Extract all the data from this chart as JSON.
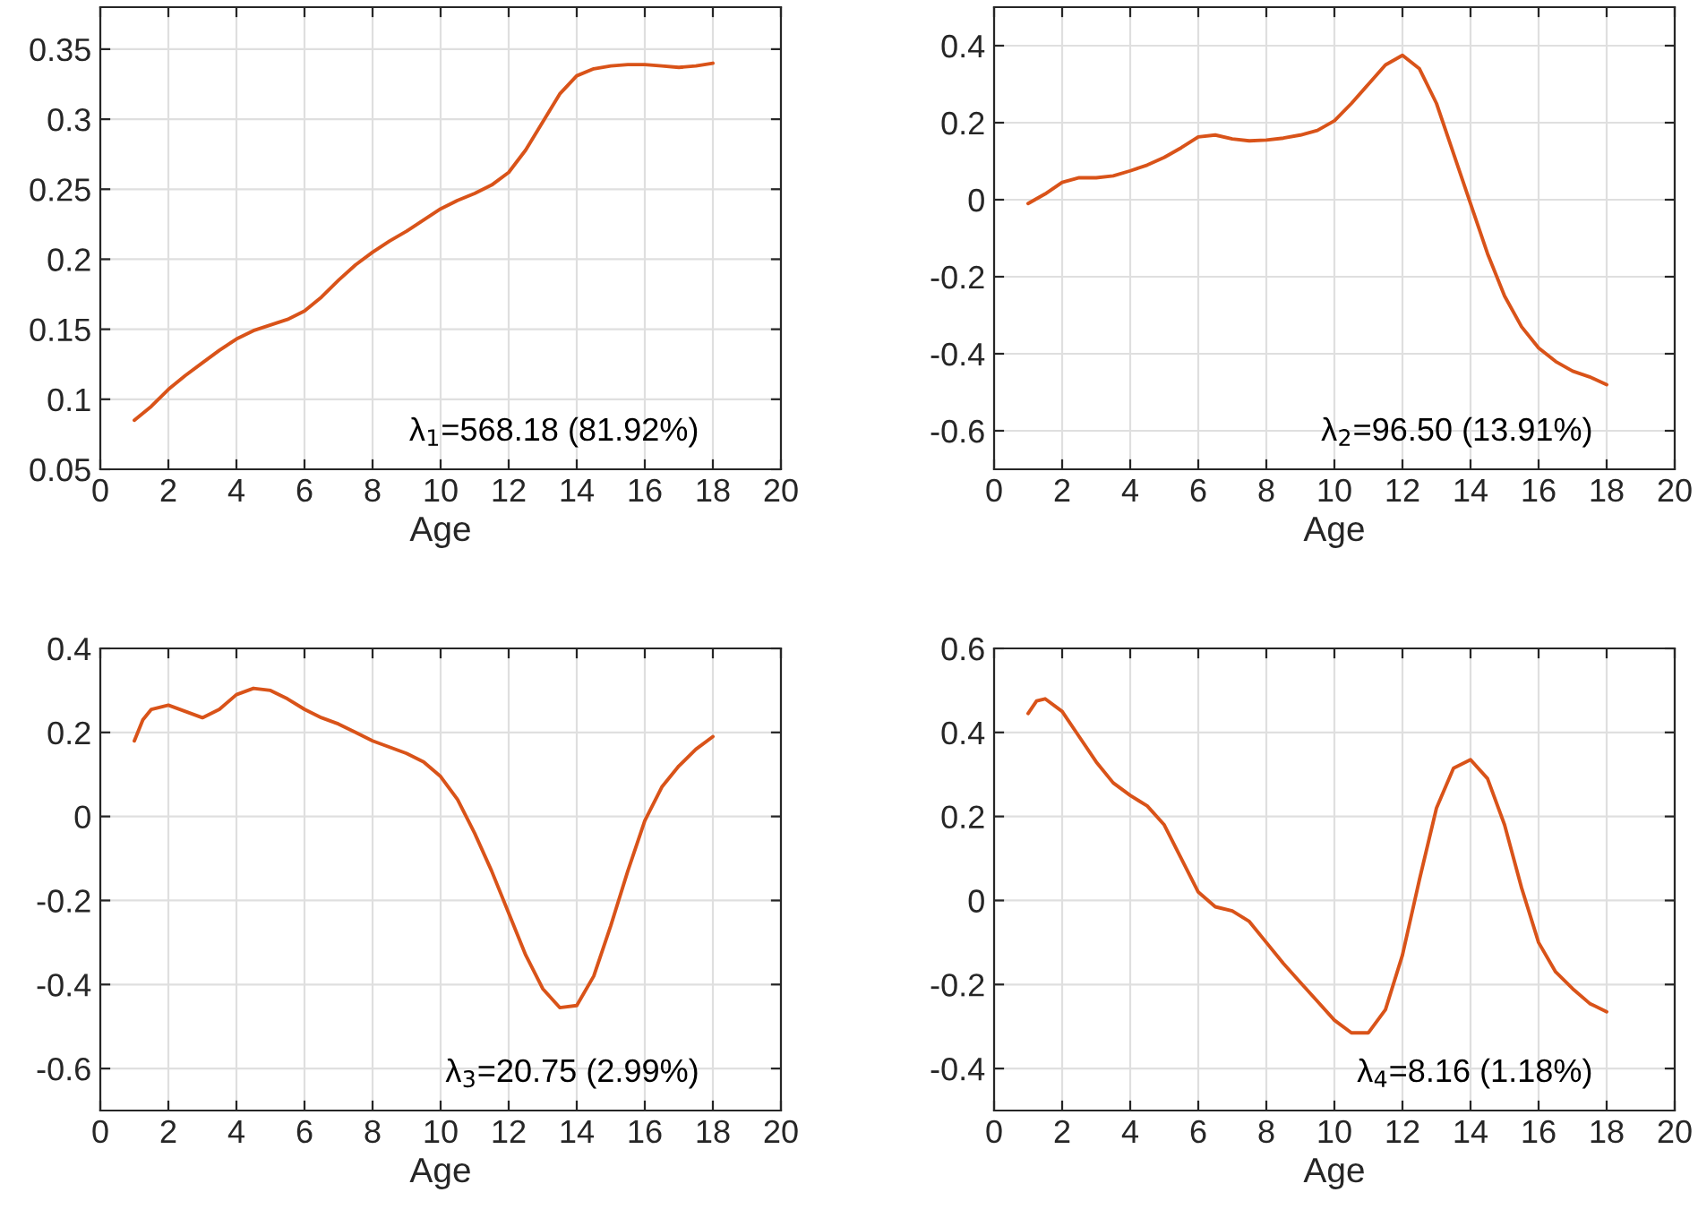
{
  "chart_data": [
    {
      "type": "line",
      "xlabel": "Age",
      "x": [
        1,
        1.5,
        2,
        2.5,
        3,
        3.5,
        4,
        4.5,
        5,
        5.5,
        6,
        6.5,
        7,
        7.5,
        8,
        8.5,
        9,
        9.5,
        10,
        10.5,
        11,
        11.5,
        12,
        12.5,
        13,
        13.5,
        14,
        14.5,
        15,
        15.5,
        16,
        16.5,
        17,
        17.5,
        18
      ],
      "series": [
        {
          "color": "#d95319",
          "values": [
            0.085,
            0.095,
            0.107,
            0.117,
            0.126,
            0.135,
            0.143,
            0.149,
            0.153,
            0.157,
            0.163,
            0.173,
            0.185,
            0.196,
            0.205,
            0.213,
            0.22,
            0.228,
            0.236,
            0.242,
            0.247,
            0.253,
            0.262,
            0.278,
            0.298,
            0.318,
            0.331,
            0.336,
            0.338,
            0.339,
            0.339,
            0.338,
            0.337,
            0.338,
            0.34
          ]
        }
      ],
      "xlim": [
        0,
        20
      ],
      "xticks": [
        0,
        2,
        4,
        6,
        8,
        10,
        12,
        14,
        16,
        18,
        20
      ],
      "ylim": [
        0.05,
        0.38
      ],
      "yticks": [
        0.05,
        0.1,
        0.15,
        0.2,
        0.25,
        0.3,
        0.35
      ],
      "grid": true,
      "annotations": [
        "λ$_{1}$=568.18 (81.92%)"
      ]
    },
    {
      "type": "line",
      "xlabel": "Age",
      "x": [
        1,
        1.5,
        2,
        2.5,
        3,
        3.5,
        4,
        4.5,
        5,
        5.5,
        6,
        6.5,
        7,
        7.5,
        8,
        8.5,
        9,
        9.5,
        10,
        10.5,
        11,
        11.5,
        12,
        12.5,
        13,
        13.5,
        14,
        14.5,
        15,
        15.5,
        16,
        16.5,
        17,
        17.5,
        18
      ],
      "series": [
        {
          "color": "#d95319",
          "values": [
            -0.01,
            0.015,
            0.045,
            0.057,
            0.057,
            0.062,
            0.075,
            0.09,
            0.11,
            0.135,
            0.163,
            0.168,
            0.158,
            0.153,
            0.155,
            0.16,
            0.168,
            0.18,
            0.205,
            0.25,
            0.3,
            0.35,
            0.375,
            0.34,
            0.25,
            0.12,
            -0.01,
            -0.14,
            -0.25,
            -0.33,
            -0.385,
            -0.42,
            -0.445,
            -0.46,
            -0.48
          ]
        }
      ],
      "xlim": [
        0,
        20
      ],
      "xticks": [
        0,
        2,
        4,
        6,
        8,
        10,
        12,
        14,
        16,
        18,
        20
      ],
      "ylim": [
        -0.7,
        0.5
      ],
      "yticks": [
        -0.6,
        -0.4,
        -0.2,
        0,
        0.2,
        0.4
      ],
      "grid": true,
      "annotations": [
        "λ$_{2}$=96.50 (13.91%)"
      ]
    },
    {
      "type": "line",
      "xlabel": "Age",
      "x": [
        1,
        1.25,
        1.5,
        2,
        2.5,
        3,
        3.5,
        4,
        4.5,
        5,
        5.5,
        6,
        6.5,
        7,
        7.5,
        8,
        8.5,
        9,
        9.5,
        10,
        10.5,
        11,
        11.5,
        12,
        12.5,
        13,
        13.5,
        14,
        14.5,
        15,
        15.5,
        16,
        16.5,
        17,
        17.5,
        18
      ],
      "series": [
        {
          "color": "#d95319",
          "values": [
            0.18,
            0.23,
            0.255,
            0.265,
            0.25,
            0.235,
            0.255,
            0.29,
            0.305,
            0.3,
            0.28,
            0.255,
            0.235,
            0.22,
            0.2,
            0.18,
            0.165,
            0.15,
            0.13,
            0.095,
            0.04,
            -0.04,
            -0.13,
            -0.23,
            -0.33,
            -0.41,
            -0.455,
            -0.45,
            -0.38,
            -0.26,
            -0.13,
            -0.01,
            0.07,
            0.12,
            0.16,
            0.19
          ]
        }
      ],
      "xlim": [
        0,
        20
      ],
      "xticks": [
        0,
        2,
        4,
        6,
        8,
        10,
        12,
        14,
        16,
        18,
        20
      ],
      "ylim": [
        -0.7,
        0.4
      ],
      "yticks": [
        -0.6,
        -0.4,
        -0.2,
        0,
        0.2,
        0.4
      ],
      "grid": true,
      "annotations": [
        "λ$_{3}$=20.75 (2.99%)"
      ]
    },
    {
      "type": "line",
      "xlabel": "Age",
      "x": [
        1,
        1.25,
        1.5,
        2,
        2.5,
        3,
        3.5,
        4,
        4.5,
        5,
        5.5,
        6,
        6.5,
        7,
        7.5,
        8,
        8.5,
        9,
        9.5,
        10,
        10.5,
        11,
        11.5,
        12,
        12.5,
        13,
        13.5,
        14,
        14.5,
        15,
        15.5,
        16,
        16.5,
        17,
        17.5,
        18
      ],
      "series": [
        {
          "color": "#d95319",
          "values": [
            0.445,
            0.475,
            0.48,
            0.45,
            0.39,
            0.33,
            0.28,
            0.25,
            0.225,
            0.18,
            0.1,
            0.02,
            -0.015,
            -0.025,
            -0.05,
            -0.1,
            -0.15,
            -0.195,
            -0.24,
            -0.285,
            -0.315,
            -0.315,
            -0.26,
            -0.13,
            0.05,
            0.22,
            0.315,
            0.335,
            0.29,
            0.18,
            0.03,
            -0.1,
            -0.17,
            -0.21,
            -0.245,
            -0.265
          ]
        }
      ],
      "xlim": [
        0,
        20
      ],
      "xticks": [
        0,
        2,
        4,
        6,
        8,
        10,
        12,
        14,
        16,
        18,
        20
      ],
      "ylim": [
        -0.5,
        0.6
      ],
      "yticks": [
        -0.4,
        -0.2,
        0,
        0.2,
        0.4,
        0.6
      ],
      "grid": true,
      "annotations": [
        "λ$_{4}$=8.16 (1.18%)"
      ]
    }
  ]
}
